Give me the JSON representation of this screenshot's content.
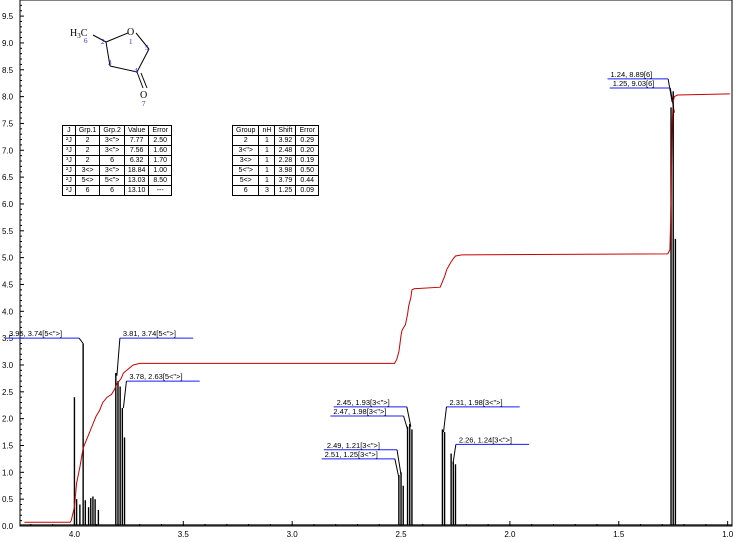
{
  "chart_data": {
    "type": "line",
    "xlim": [
      4.25,
      0.98
    ],
    "ylim": [
      0,
      9.8
    ],
    "xticks": [
      "4.0",
      "3.5",
      "3.0",
      "2.5",
      "2.0",
      "1.5",
      "1.0"
    ],
    "yticks": [
      "0.0",
      "0.5",
      "1.0",
      "1.5",
      "2.0",
      "2.5",
      "3.0",
      "3.5",
      "4.0",
      "4.5",
      "5.0",
      "5.5",
      "6.0",
      "6.5",
      "7.0",
      "7.5",
      "8.0",
      "8.5",
      "9.0",
      "9.5"
    ],
    "colors": {
      "spectrum": "#000000",
      "integral": "#cc0000",
      "leader": "#1a1aff"
    },
    "peaks": [
      {
        "x": 4.0,
        "y": 2.4
      },
      {
        "x": 3.99,
        "y": 0.5
      },
      {
        "x": 3.975,
        "y": 0.4
      },
      {
        "x": 3.96,
        "y": 3.4
      },
      {
        "x": 3.95,
        "y": 0.48
      },
      {
        "x": 3.935,
        "y": 0.35
      },
      {
        "x": 3.925,
        "y": 0.52
      },
      {
        "x": 3.915,
        "y": 0.55
      },
      {
        "x": 3.905,
        "y": 0.5
      },
      {
        "x": 3.89,
        "y": 0.3
      },
      {
        "x": 3.81,
        "y": 2.85
      },
      {
        "x": 3.8,
        "y": 2.7
      },
      {
        "x": 3.79,
        "y": 2.6
      },
      {
        "x": 3.78,
        "y": 2.2
      },
      {
        "x": 3.77,
        "y": 1.65
      },
      {
        "x": 2.51,
        "y": 0.95
      },
      {
        "x": 2.5,
        "y": 1.0
      },
      {
        "x": 2.49,
        "y": 0.75
      },
      {
        "x": 2.47,
        "y": 1.85
      },
      {
        "x": 2.46,
        "y": 1.9
      },
      {
        "x": 2.45,
        "y": 1.8
      },
      {
        "x": 2.31,
        "y": 1.8
      },
      {
        "x": 2.3,
        "y": 1.75
      },
      {
        "x": 2.27,
        "y": 1.35
      },
      {
        "x": 2.26,
        "y": 1.2
      },
      {
        "x": 2.25,
        "y": 1.15
      },
      {
        "x": 1.26,
        "y": 7.8
      },
      {
        "x": 1.25,
        "y": 8.1
      },
      {
        "x": 1.24,
        "y": 5.35
      }
    ],
    "integral": [
      [
        4.23,
        0.07
      ],
      [
        4.02,
        0.07
      ],
      [
        4.015,
        0.1
      ],
      [
        4.0,
        0.35
      ],
      [
        3.99,
        0.8
      ],
      [
        3.975,
        1.1
      ],
      [
        3.96,
        1.45
      ],
      [
        3.945,
        1.6
      ],
      [
        3.93,
        1.75
      ],
      [
        3.915,
        1.9
      ],
      [
        3.9,
        2.05
      ],
      [
        3.885,
        2.15
      ],
      [
        3.87,
        2.3
      ],
      [
        3.85,
        2.4
      ],
      [
        3.83,
        2.45
      ],
      [
        3.815,
        2.55
      ],
      [
        3.805,
        2.65
      ],
      [
        3.795,
        2.7
      ],
      [
        3.785,
        2.75
      ],
      [
        3.775,
        2.85
      ],
      [
        3.76,
        2.9
      ],
      [
        3.73,
        3.0
      ],
      [
        3.7,
        3.03
      ],
      [
        2.53,
        3.03
      ],
      [
        2.52,
        3.1
      ],
      [
        2.51,
        3.25
      ],
      [
        2.505,
        3.4
      ],
      [
        2.5,
        3.55
      ],
      [
        2.495,
        3.65
      ],
      [
        2.48,
        3.75
      ],
      [
        2.47,
        3.95
      ],
      [
        2.465,
        4.1
      ],
      [
        2.455,
        4.25
      ],
      [
        2.45,
        4.4
      ],
      [
        2.44,
        4.42
      ],
      [
        2.32,
        4.45
      ],
      [
        2.31,
        4.55
      ],
      [
        2.3,
        4.65
      ],
      [
        2.29,
        4.78
      ],
      [
        2.28,
        4.85
      ],
      [
        2.27,
        4.92
      ],
      [
        2.26,
        4.98
      ],
      [
        2.25,
        5.03
      ],
      [
        2.22,
        5.05
      ],
      [
        1.275,
        5.07
      ],
      [
        1.265,
        5.15
      ],
      [
        1.26,
        6.0
      ],
      [
        1.255,
        7.5
      ],
      [
        1.25,
        7.9
      ],
      [
        1.245,
        8.0
      ],
      [
        1.23,
        8.03
      ],
      [
        0.99,
        8.05
      ]
    ],
    "annotations": [
      {
        "text": "3.96, 3.74[5<\">]",
        "px": 3.96,
        "py": 3.4,
        "pos": "left"
      },
      {
        "text": "3.81, 3.74[5<\">]",
        "px": 3.805,
        "py": 2.8,
        "pos": "right"
      },
      {
        "text": "3.78, 2.63[5<\">]",
        "px": 3.775,
        "py": 2.2,
        "pos": "right"
      },
      {
        "text": "2.45, 1.93[3<\">]",
        "px": 2.455,
        "py": 1.85,
        "pos": "left"
      },
      {
        "text": "2.47, 1.98[3<\">]",
        "px": 2.47,
        "py": 1.8,
        "pos": "left"
      },
      {
        "text": "2.31, 1.98[3<\">]",
        "px": 2.305,
        "py": 1.75,
        "pos": "right"
      },
      {
        "text": "2.49, 1.21[3<\">]",
        "px": 2.5,
        "py": 0.95,
        "pos": "left"
      },
      {
        "text": "2.51, 1.25[3<\">]",
        "px": 2.51,
        "py": 0.9,
        "pos": "left"
      },
      {
        "text": "2.26, 1.24[3<\">]",
        "px": 2.262,
        "py": 1.15,
        "pos": "right"
      },
      {
        "text": "1.24, 8.89[6]",
        "px": 1.255,
        "py": 7.9,
        "pos": "left"
      },
      {
        "text": "1.25, 9.03[6]",
        "px": 1.245,
        "py": 7.7,
        "pos": "left"
      }
    ]
  },
  "molecule": {
    "atoms": [
      {
        "id": "h3c",
        "label": "H3C",
        "num": "6"
      },
      {
        "id": "c2",
        "label": "",
        "num": "2"
      },
      {
        "id": "o1",
        "label": "O",
        "num": "1"
      },
      {
        "id": "c5",
        "label": "",
        "num": "5"
      },
      {
        "id": "c3",
        "label": "",
        "num": "3"
      },
      {
        "id": "c4",
        "label": "",
        "num": "4"
      },
      {
        "id": "o7",
        "label": "O",
        "num": "7"
      }
    ]
  },
  "coupling_table": {
    "headers": [
      "J",
      "Grp.1",
      "Grp.2",
      "Value",
      "Error"
    ],
    "rows": [
      [
        "²J",
        "2",
        "3<\">",
        "7.77",
        "2.50"
      ],
      [
        "³J",
        "2",
        "3<\">",
        "7.56",
        "1.60"
      ],
      [
        "³J",
        "2",
        "6",
        "6.32",
        "1.70"
      ],
      [
        "²J",
        "3<>",
        "3<\">",
        "18.84",
        "1.00"
      ],
      [
        "²J",
        "5<>",
        "5<\">",
        "13.03",
        "8.50"
      ],
      [
        "²J",
        "6",
        "6",
        "13.10",
        "---"
      ]
    ]
  },
  "shift_table": {
    "headers": [
      "Group",
      "nH",
      "Shift",
      "Error"
    ],
    "rows": [
      [
        "2",
        "1",
        "3.92",
        "0.29"
      ],
      [
        "3<\">",
        "1",
        "2.48",
        "0.20"
      ],
      [
        "3<>",
        "1",
        "2.28",
        "0.19"
      ],
      [
        "5<\">",
        "1",
        "3.98",
        "0.50"
      ],
      [
        "5<>",
        "1",
        "3.79",
        "0.44"
      ],
      [
        "6",
        "3",
        "1.25",
        "0.09"
      ]
    ]
  }
}
